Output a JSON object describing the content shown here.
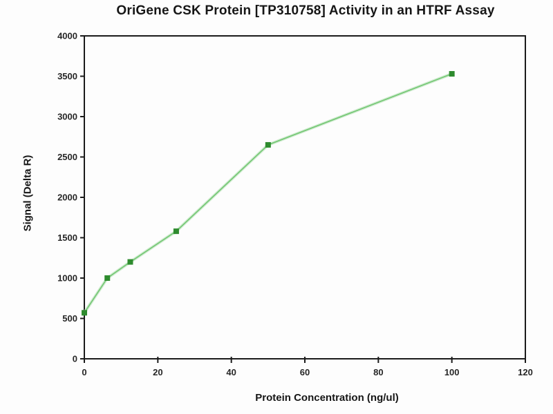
{
  "chart_data": {
    "type": "line",
    "title": "OriGene CSK Protein [TP310758] Activity in an HTRF Assay",
    "xlabel": "Protein Concentration (ng/ul)",
    "ylabel": "Signal (Delta R)",
    "x": [
      0,
      6.25,
      12.5,
      25,
      50,
      100
    ],
    "y": [
      570,
      1000,
      1200,
      1580,
      2650,
      3530
    ],
    "xlim": [
      0,
      120
    ],
    "ylim": [
      0,
      4000
    ],
    "x_ticks": [
      0,
      20,
      40,
      60,
      80,
      100,
      120
    ],
    "y_ticks": [
      0,
      500,
      1000,
      1500,
      2000,
      2500,
      3000,
      3500,
      4000
    ],
    "grid": false,
    "legend": "none",
    "marker_shape": "square",
    "colors": {
      "line": "#77c877",
      "line_halo": "#c9e9c9",
      "marker": "#2e8b2e",
      "axis": "#1a1a1a",
      "plot_background": "#fdfdfd"
    }
  }
}
